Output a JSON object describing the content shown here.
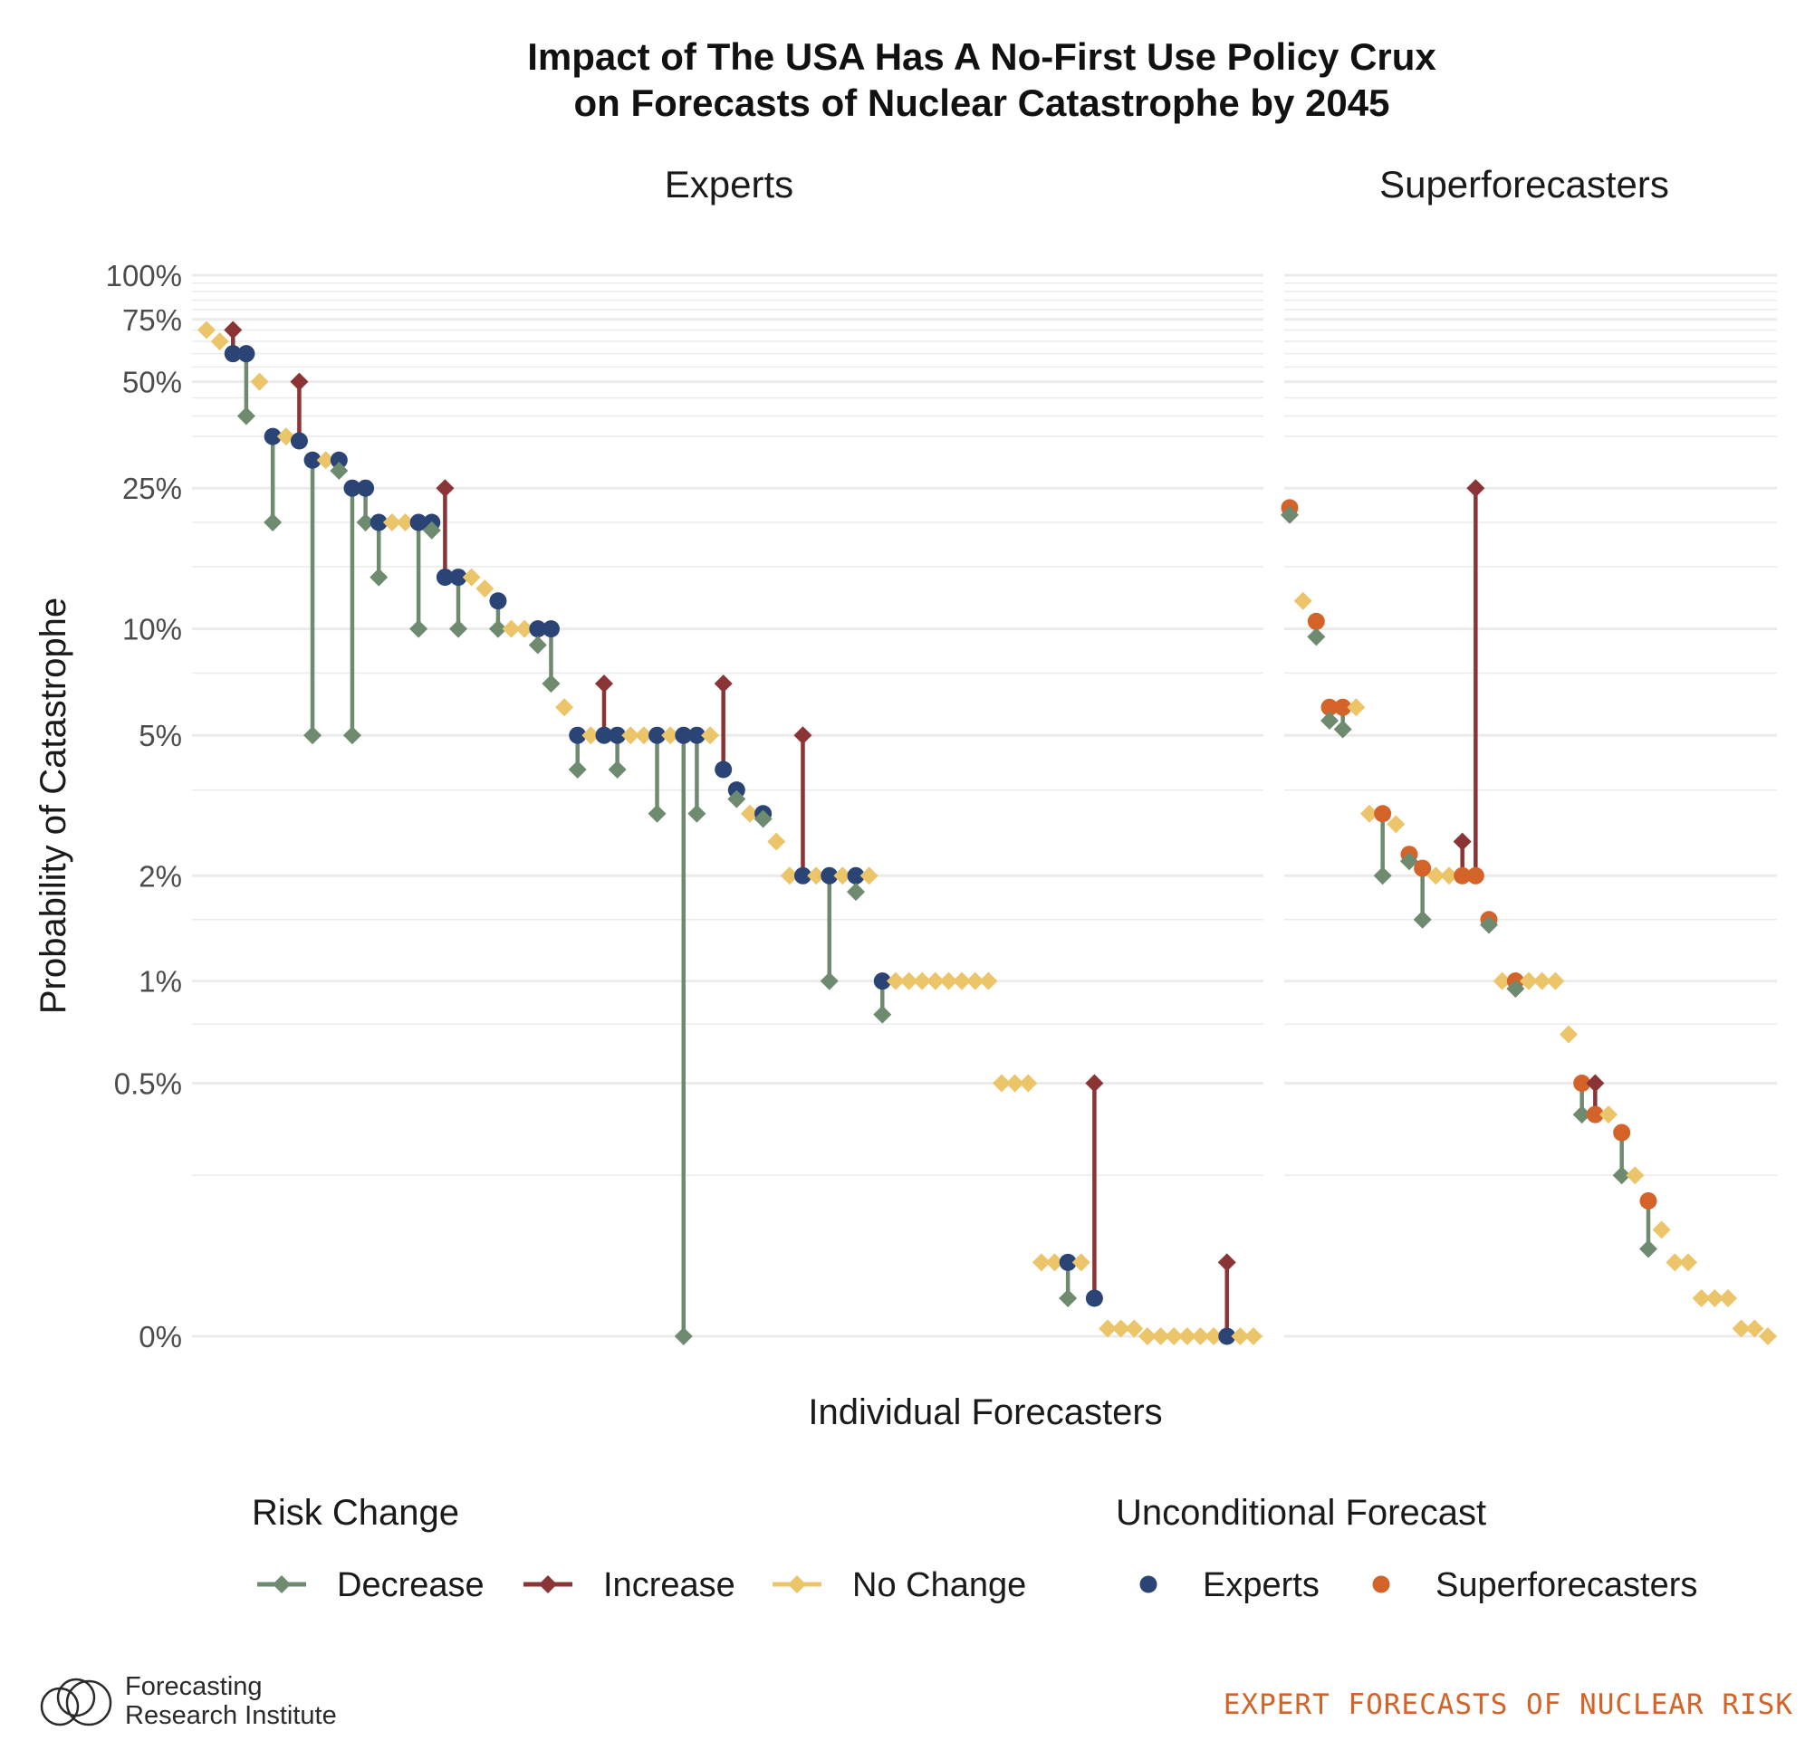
{
  "colors": {
    "decrease": "#6e8a6f",
    "increase": "#8b3436",
    "no_change": "#ecc56a",
    "experts_point": "#2b4476",
    "superforecasters_point": "#d4632a",
    "gridline": "#ebebeb",
    "footer": "#d4632a"
  },
  "logo": {
    "line1": "Forecasting",
    "line2": "Research Institute",
    "icon": "three-overlapping-circles-icon"
  },
  "footer_text": "EXPERT FORECASTS OF NUCLEAR RISK",
  "chart_data": {
    "type": "dumbbell-scatter",
    "title_line1": "Impact of The USA Has A No-First Use Policy Crux",
    "title_line2": "on Forecasts of Nuclear Catastrophe by 2045",
    "xlabel": "Individual Forecasters",
    "ylabel": "Probability of Catastrophe",
    "y_scale": "pseudo-log",
    "y_ticks": [
      {
        "value": 0,
        "label": "0%"
      },
      {
        "value": 0.5,
        "label": "0.5%"
      },
      {
        "value": 1,
        "label": "1%"
      },
      {
        "value": 2,
        "label": "2%"
      },
      {
        "value": 5,
        "label": "5%"
      },
      {
        "value": 10,
        "label": "10%"
      },
      {
        "value": 25,
        "label": "25%"
      },
      {
        "value": 50,
        "label": "50%"
      },
      {
        "value": 75,
        "label": "75%"
      },
      {
        "value": 100,
        "label": "100%"
      }
    ],
    "grid": true,
    "legend": {
      "position": "bottom",
      "risk_change_title": "Risk Change",
      "risk_change_items": [
        "Decrease",
        "Increase",
        "No Change"
      ],
      "unconditional_title": "Unconditional Forecast",
      "unconditional_items": [
        "Experts",
        "Superforecasters"
      ]
    },
    "panels": [
      {
        "name": "Experts",
        "n": 80,
        "forecasters": [
          {
            "u": 70,
            "c": 70
          },
          {
            "u": 65,
            "c": 65
          },
          {
            "u": 60,
            "c": 70
          },
          {
            "u": 60,
            "c": 40
          },
          {
            "u": 50,
            "c": 50
          },
          {
            "u": 35,
            "c": 20
          },
          {
            "u": 35,
            "c": 35
          },
          {
            "u": 34,
            "c": 50
          },
          {
            "u": 30,
            "c": 5
          },
          {
            "u": 30,
            "c": 30
          },
          {
            "u": 30,
            "c": 28
          },
          {
            "u": 25,
            "c": 5
          },
          {
            "u": 25,
            "c": 20
          },
          {
            "u": 20,
            "c": 14
          },
          {
            "u": 20,
            "c": 20
          },
          {
            "u": 20,
            "c": 20
          },
          {
            "u": 20,
            "c": 10
          },
          {
            "u": 20,
            "c": 19
          },
          {
            "u": 14,
            "c": 25
          },
          {
            "u": 14,
            "c": 10
          },
          {
            "u": 14,
            "c": 14
          },
          {
            "u": 13,
            "c": 13
          },
          {
            "u": 12,
            "c": 10
          },
          {
            "u": 10,
            "c": 10
          },
          {
            "u": 10,
            "c": 10
          },
          {
            "u": 10,
            "c": 9
          },
          {
            "u": 10,
            "c": 7
          },
          {
            "u": 6,
            "c": 6
          },
          {
            "u": 5,
            "c": 4
          },
          {
            "u": 5,
            "c": 5
          },
          {
            "u": 5,
            "c": 7
          },
          {
            "u": 5,
            "c": 4
          },
          {
            "u": 5,
            "c": 5
          },
          {
            "u": 5,
            "c": 5
          },
          {
            "u": 5,
            "c": 3
          },
          {
            "u": 5,
            "c": 5
          },
          {
            "u": 5,
            "c": 0
          },
          {
            "u": 5,
            "c": 3
          },
          {
            "u": 5,
            "c": 5
          },
          {
            "u": 4,
            "c": 7
          },
          {
            "u": 3.5,
            "c": 3.3
          },
          {
            "u": 3,
            "c": 3
          },
          {
            "u": 3,
            "c": 2.9
          },
          {
            "u": 2.5,
            "c": 2.5
          },
          {
            "u": 2,
            "c": 2
          },
          {
            "u": 2,
            "c": 5
          },
          {
            "u": 2,
            "c": 2
          },
          {
            "u": 2,
            "c": 1
          },
          {
            "u": 2,
            "c": 2
          },
          {
            "u": 2,
            "c": 1.8
          },
          {
            "u": 2,
            "c": 2
          },
          {
            "u": 1,
            "c": 0.8
          },
          {
            "u": 1,
            "c": 1
          },
          {
            "u": 1,
            "c": 1
          },
          {
            "u": 1,
            "c": 1
          },
          {
            "u": 1,
            "c": 1
          },
          {
            "u": 1,
            "c": 1
          },
          {
            "u": 1,
            "c": 1
          },
          {
            "u": 1,
            "c": 1
          },
          {
            "u": 1,
            "c": 1
          },
          {
            "u": 0.5,
            "c": 0.5
          },
          {
            "u": 0.5,
            "c": 0.5
          },
          {
            "u": 0.5,
            "c": 0.5
          },
          {
            "u": 0.1,
            "c": 0.1
          },
          {
            "u": 0.1,
            "c": 0.1
          },
          {
            "u": 0.1,
            "c": 0.05
          },
          {
            "u": 0.1,
            "c": 0.1
          },
          {
            "u": 0.05,
            "c": 0.5
          },
          {
            "u": 0.01,
            "c": 0.01
          },
          {
            "u": 0.01,
            "c": 0.01
          },
          {
            "u": 0.01,
            "c": 0.01
          },
          {
            "u": 0,
            "c": 0
          },
          {
            "u": 0,
            "c": 0
          },
          {
            "u": 0,
            "c": 0
          },
          {
            "u": 0,
            "c": 0
          },
          {
            "u": 0,
            "c": 0
          },
          {
            "u": 0,
            "c": 0
          },
          {
            "u": 0,
            "c": 0.1
          },
          {
            "u": 0,
            "c": 0
          },
          {
            "u": 0,
            "c": 0
          }
        ]
      },
      {
        "name": "Superforecasters",
        "n": 37,
        "forecasters": [
          {
            "u": 22,
            "c": 21
          },
          {
            "u": 12,
            "c": 12
          },
          {
            "u": 10.5,
            "c": 9.5
          },
          {
            "u": 6,
            "c": 5.5
          },
          {
            "u": 6,
            "c": 5.2
          },
          {
            "u": 6,
            "c": 6
          },
          {
            "u": 3,
            "c": 3
          },
          {
            "u": 3,
            "c": 2
          },
          {
            "u": 2.8,
            "c": 2.8
          },
          {
            "u": 2.3,
            "c": 2.2
          },
          {
            "u": 2.1,
            "c": 1.5
          },
          {
            "u": 2,
            "c": 2
          },
          {
            "u": 2,
            "c": 2
          },
          {
            "u": 2,
            "c": 2.5
          },
          {
            "u": 2,
            "c": 25
          },
          {
            "u": 1.5,
            "c": 1.45
          },
          {
            "u": 1,
            "c": 1
          },
          {
            "u": 1,
            "c": 0.95
          },
          {
            "u": 1,
            "c": 1
          },
          {
            "u": 1,
            "c": 1
          },
          {
            "u": 1,
            "c": 1
          },
          {
            "u": 0.7,
            "c": 0.7
          },
          {
            "u": 0.5,
            "c": 0.4
          },
          {
            "u": 0.4,
            "c": 0.5
          },
          {
            "u": 0.4,
            "c": 0.4
          },
          {
            "u": 0.35,
            "c": 0.25
          },
          {
            "u": 0.25,
            "c": 0.25
          },
          {
            "u": 0.2,
            "c": 0.12
          },
          {
            "u": 0.15,
            "c": 0.15
          },
          {
            "u": 0.1,
            "c": 0.1
          },
          {
            "u": 0.1,
            "c": 0.1
          },
          {
            "u": 0.05,
            "c": 0.05
          },
          {
            "u": 0.05,
            "c": 0.05
          },
          {
            "u": 0.05,
            "c": 0.05
          },
          {
            "u": 0.01,
            "c": 0.01
          },
          {
            "u": 0.01,
            "c": 0.01
          },
          {
            "u": 0,
            "c": 0
          }
        ]
      }
    ]
  }
}
